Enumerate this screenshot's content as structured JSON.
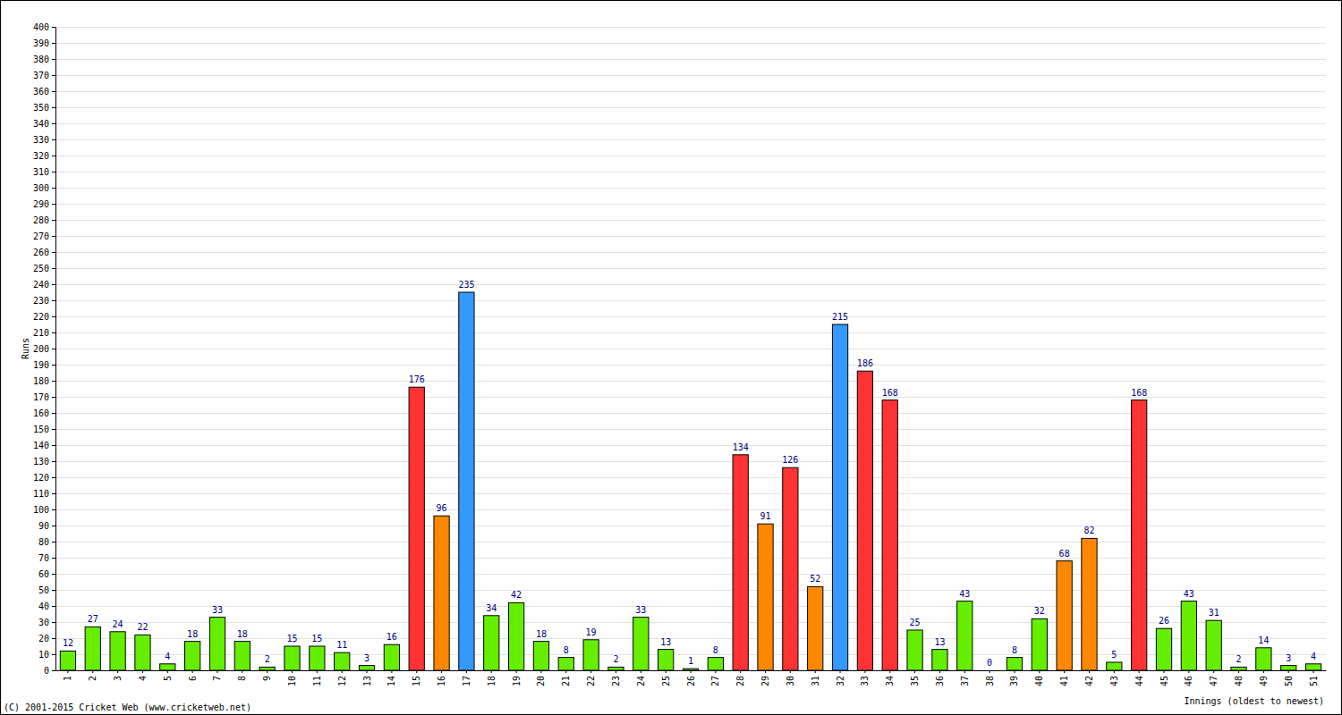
{
  "chart_data": {
    "type": "bar",
    "x_label": "Innings (oldest to newest)",
    "y_label": "Runs",
    "annotations": [
      "(C) 2001-2015 Cricket Web (www.cricketweb.net)"
    ],
    "categories": [
      "1",
      "2",
      "3",
      "4",
      "5",
      "6",
      "7",
      "8",
      "9",
      "10",
      "11",
      "12",
      "13",
      "14",
      "15",
      "16",
      "17",
      "18",
      "19",
      "20",
      "21",
      "22",
      "23",
      "24",
      "25",
      "26",
      "27",
      "28",
      "29",
      "30",
      "31",
      "32",
      "33",
      "34",
      "35",
      "36",
      "37",
      "38",
      "39",
      "40",
      "41",
      "42",
      "43",
      "44",
      "45",
      "46",
      "47",
      "48",
      "49",
      "50",
      "51"
    ],
    "values": [
      12,
      27,
      24,
      22,
      4,
      18,
      33,
      18,
      2,
      15,
      15,
      11,
      3,
      16,
      176,
      96,
      235,
      34,
      42,
      18,
      8,
      19,
      2,
      33,
      13,
      1,
      8,
      134,
      91,
      126,
      52,
      215,
      186,
      168,
      25,
      13,
      43,
      0,
      8,
      32,
      68,
      82,
      5,
      168,
      26,
      43,
      31,
      2,
      14,
      3,
      4
    ],
    "colors": [
      "#66ee00",
      "#66ee00",
      "#66ee00",
      "#66ee00",
      "#66ee00",
      "#66ee00",
      "#66ee00",
      "#66ee00",
      "#66ee00",
      "#66ee00",
      "#66ee00",
      "#66ee00",
      "#66ee00",
      "#66ee00",
      "#ff3333",
      "#ff8800",
      "#3399ff",
      "#66ee00",
      "#66ee00",
      "#66ee00",
      "#66ee00",
      "#66ee00",
      "#66ee00",
      "#66ee00",
      "#66ee00",
      "#66ee00",
      "#66ee00",
      "#ff3333",
      "#ff8800",
      "#ff3333",
      "#ff8800",
      "#3399ff",
      "#ff3333",
      "#ff3333",
      "#66ee00",
      "#66ee00",
      "#66ee00",
      "#66ee00",
      "#66ee00",
      "#66ee00",
      "#ff8800",
      "#ff8800",
      "#66ee00",
      "#ff3333",
      "#66ee00",
      "#66ee00",
      "#66ee00",
      "#66ee00",
      "#66ee00",
      "#66ee00",
      "#66ee00"
    ],
    "ylim": [
      0,
      400
    ],
    "yticks": [
      0,
      10,
      20,
      30,
      40,
      50,
      60,
      70,
      80,
      90,
      100,
      110,
      120,
      130,
      140,
      150,
      160,
      170,
      180,
      190,
      200,
      210,
      220,
      230,
      240,
      250,
      260,
      270,
      280,
      290,
      300,
      310,
      320,
      330,
      340,
      350,
      360,
      370,
      380,
      390,
      400
    ],
    "grid": true,
    "data_labels": true
  }
}
